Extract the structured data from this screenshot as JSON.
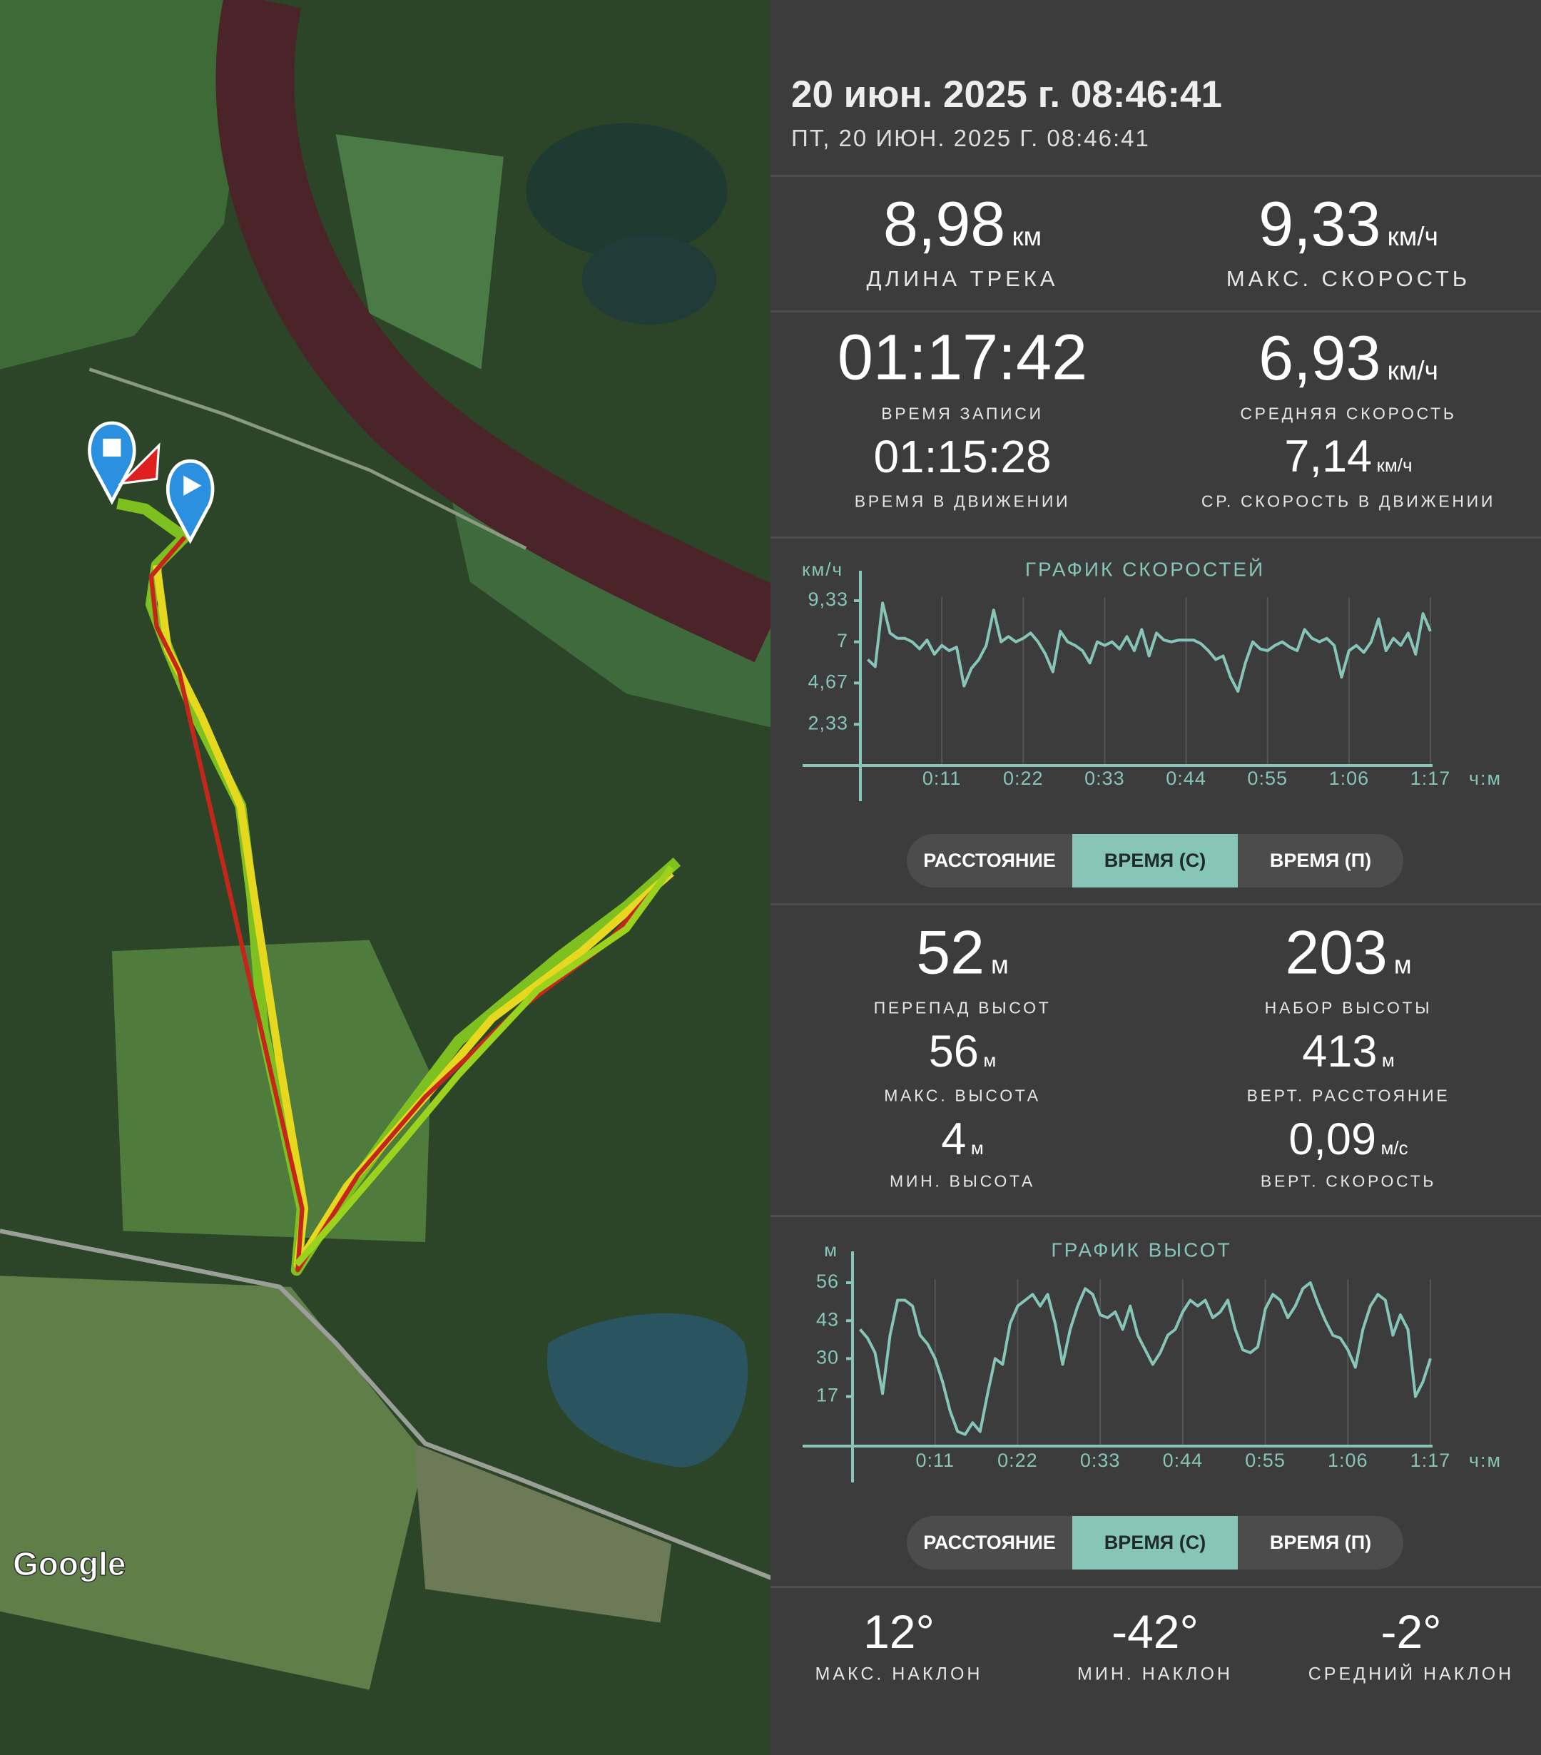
{
  "header": {
    "title": "20 июн. 2025 г. 08:46:41",
    "subtitle": "ПТ, 20 ИЮН. 2025 Г. 08:46:41"
  },
  "map": {
    "attribution": "Google"
  },
  "summary": [
    {
      "value": "8,98",
      "unit": "км",
      "label": "ДЛИНА ТРЕКА"
    },
    {
      "value": "9,33",
      "unit": "км/ч",
      "label": "МАКС. СКОРОСТЬ"
    },
    {
      "value": "01:17:42",
      "label": "ВРЕМЯ ЗАПИСИ"
    },
    {
      "value": "6,93",
      "unit": "км/ч",
      "label": "СРЕДНЯЯ СКОРОСТЬ"
    },
    {
      "value": "01:15:28",
      "label": "ВРЕМЯ В ДВИЖЕНИИ"
    },
    {
      "value": "7,14",
      "unit": "км/ч",
      "label": "СР. СКОРОСТЬ В ДВИЖЕНИИ"
    }
  ],
  "elevation_stats": [
    {
      "value": "52",
      "unit": "м",
      "label": "ПЕРЕПАД ВЫСОТ"
    },
    {
      "value": "203",
      "unit": "м",
      "label": "НАБОР ВЫСОТЫ"
    },
    {
      "value": "56",
      "unit": "м",
      "label": "МАКС. ВЫСОТА"
    },
    {
      "value": "413",
      "unit": "м",
      "label": "ВЕРТ. РАССТОЯНИЕ"
    },
    {
      "value": "4",
      "unit": "м",
      "label": "МИН. ВЫСОТА"
    },
    {
      "value": "0,09",
      "unit": "м/с",
      "label": "ВЕРТ. СКОРОСТЬ"
    }
  ],
  "slopes": [
    {
      "value": "12°",
      "label": "МАКС. НАКЛОН"
    },
    {
      "value": "-42°",
      "label": "МИН. НАКЛОН"
    },
    {
      "value": "-2°",
      "label": "СРЕДНИЙ НАКЛОН"
    }
  ],
  "chart_data": [
    {
      "type": "line",
      "title": "ГРАФИК СКОРОСТЕЙ",
      "y_label": "км/ч",
      "x_label": "ч:м",
      "color": "#86c5b8",
      "grid": true,
      "x": [
        1,
        2,
        3,
        4,
        5,
        6,
        7,
        8,
        9,
        10,
        11,
        12,
        13,
        14,
        15,
        16,
        17,
        18,
        19,
        20,
        21,
        22,
        23,
        24,
        25,
        26,
        27,
        28,
        29,
        30,
        31,
        32,
        33,
        34,
        35,
        36,
        37,
        38,
        39,
        40,
        41,
        42,
        43,
        44,
        45,
        46,
        47,
        48,
        49,
        50,
        51,
        52,
        53,
        54,
        55,
        56,
        57,
        58,
        59,
        60,
        61,
        62,
        63,
        64,
        65,
        66,
        67,
        68,
        69,
        70,
        71,
        72,
        73,
        74,
        75,
        76,
        77
      ],
      "values": [
        6.0,
        5.6,
        9.2,
        7.5,
        7.2,
        7.2,
        7.0,
        6.6,
        7.1,
        6.3,
        6.8,
        6.5,
        6.7,
        4.5,
        5.5,
        6.0,
        6.8,
        8.8,
        7.0,
        7.3,
        7.0,
        7.2,
        7.5,
        7.0,
        6.3,
        5.3,
        7.6,
        7.0,
        6.8,
        6.5,
        5.8,
        7.0,
        6.8,
        7.0,
        6.6,
        7.3,
        6.5,
        7.7,
        6.2,
        7.5,
        7.1,
        7.0,
        7.1,
        7.1,
        7.1,
        6.9,
        6.5,
        6.0,
        6.2,
        5.0,
        4.2,
        5.8,
        7.0,
        6.6,
        6.5,
        6.8,
        7.0,
        6.7,
        6.5,
        7.7,
        7.2,
        7.0,
        7.2,
        6.8,
        5.0,
        6.5,
        6.8,
        6.4,
        7.0,
        8.3,
        6.5,
        7.2,
        6.8,
        7.5,
        6.3,
        8.6,
        7.6
      ],
      "xlim": [
        0,
        77
      ],
      "ylim": [
        0,
        9.33
      ],
      "xticks": [
        {
          "value": 11,
          "label": "0:11"
        },
        {
          "value": 22,
          "label": "0:22"
        },
        {
          "value": 33,
          "label": "0:33"
        },
        {
          "value": 44,
          "label": "0:44"
        },
        {
          "value": 55,
          "label": "0:55"
        },
        {
          "value": 66,
          "label": "1:06"
        },
        {
          "value": 77,
          "label": "1:17"
        }
      ],
      "yticks": [
        {
          "value": 2.33,
          "label": "2,33"
        },
        {
          "value": 4.67,
          "label": "4,67"
        },
        7,
        {
          "value": 9.33,
          "label": "9,33"
        }
      ],
      "modes": [
        "РАССТОЯНИЕ",
        "ВРЕМЯ (С)",
        "ВРЕМЯ (П)"
      ],
      "active_mode": 1
    },
    {
      "type": "line",
      "title": "ГРАФИК ВЫСОТ",
      "y_label": "м",
      "x_label": "ч:м",
      "color": "#86c5b8",
      "grid": true,
      "x": [
        1,
        2,
        3,
        4,
        5,
        6,
        7,
        8,
        9,
        10,
        11,
        12,
        13,
        14,
        15,
        16,
        17,
        18,
        19,
        20,
        21,
        22,
        23,
        24,
        25,
        26,
        27,
        28,
        29,
        30,
        31,
        32,
        33,
        34,
        35,
        36,
        37,
        38,
        39,
        40,
        41,
        42,
        43,
        44,
        45,
        46,
        47,
        48,
        49,
        50,
        51,
        52,
        53,
        54,
        55,
        56,
        57,
        58,
        59,
        60,
        61,
        62,
        63,
        64,
        65,
        66,
        67,
        68,
        69,
        70,
        71,
        72,
        73,
        74,
        75,
        76,
        77
      ],
      "values": [
        40,
        37,
        32,
        18,
        38,
        50,
        50,
        48,
        38,
        35,
        30,
        22,
        12,
        5,
        4,
        8,
        5,
        18,
        30,
        28,
        42,
        48,
        50,
        52,
        48,
        52,
        42,
        28,
        40,
        48,
        54,
        52,
        45,
        44,
        46,
        40,
        48,
        38,
        33,
        28,
        32,
        38,
        40,
        46,
        50,
        48,
        50,
        44,
        46,
        50,
        40,
        33,
        32,
        34,
        47,
        52,
        50,
        44,
        48,
        54,
        56,
        49,
        43,
        38,
        37,
        33,
        27,
        40,
        48,
        52,
        50,
        38,
        45,
        40,
        17,
        22,
        30
      ],
      "xlim": [
        0,
        77
      ],
      "ylim": [
        0,
        56
      ],
      "xticks": [
        {
          "value": 11,
          "label": "0:11"
        },
        {
          "value": 22,
          "label": "0:22"
        },
        {
          "value": 33,
          "label": "0:33"
        },
        {
          "value": 44,
          "label": "0:44"
        },
        {
          "value": 55,
          "label": "0:55"
        },
        {
          "value": 66,
          "label": "1:06"
        },
        {
          "value": 77,
          "label": "1:17"
        }
      ],
      "yticks": [
        17,
        30,
        43,
        56
      ],
      "modes": [
        "РАССТОЯНИЕ",
        "ВРЕМЯ (С)",
        "ВРЕМЯ (П)"
      ],
      "active_mode": 1
    }
  ]
}
